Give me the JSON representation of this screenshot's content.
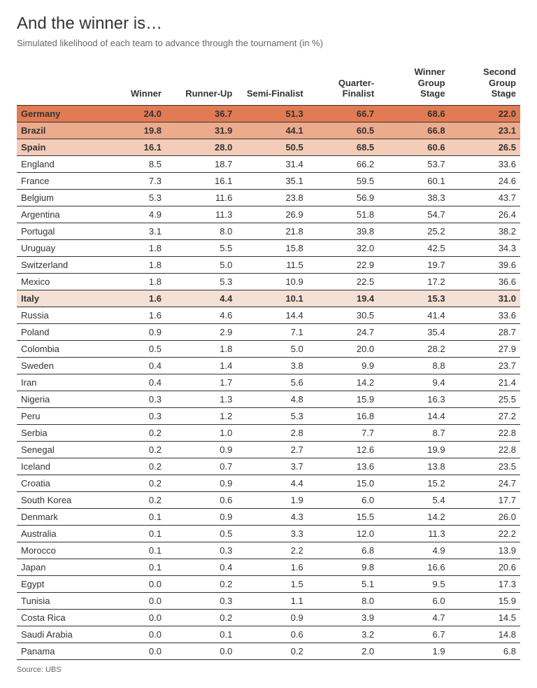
{
  "title": "And the winner is…",
  "subtitle": "Simulated likelihood of each team to advance through the tournament (in %)",
  "source": "Source: UBS",
  "columns": [
    "",
    "Winner",
    "Runner-Up",
    "Semi-Finalist",
    "Quarter-Finalist",
    "Winner Group Stage",
    "Second Group Stage"
  ],
  "highlight_colors": [
    "#e17b54",
    "#edab8d",
    "#f4cdb9",
    "#f4e0d4"
  ],
  "row_border_color": "#333333",
  "background_color": "#ffffff",
  "title_fontsize": 24,
  "subtitle_fontsize": 13,
  "body_fontsize": 13,
  "rows": [
    {
      "team": "Germany",
      "cells": [
        "24.0",
        "36.7",
        "51.3",
        "66.7",
        "68.6",
        "22.0"
      ],
      "highlight": 0
    },
    {
      "team": "Brazil",
      "cells": [
        "19.8",
        "31.9",
        "44.1",
        "60.5",
        "66.8",
        "23.1"
      ],
      "highlight": 1
    },
    {
      "team": "Spain",
      "cells": [
        "16.1",
        "28.0",
        "50.5",
        "68.5",
        "60.6",
        "26.5"
      ],
      "highlight": 2
    },
    {
      "team": "England",
      "cells": [
        "8.5",
        "18.7",
        "31.4",
        "66.2",
        "53.7",
        "33.6"
      ]
    },
    {
      "team": "France",
      "cells": [
        "7.3",
        "16.1",
        "35.1",
        "59.5",
        "60.1",
        "24.6"
      ]
    },
    {
      "team": "Belgium",
      "cells": [
        "5.3",
        "11.6",
        "23.8",
        "56.9",
        "38.3",
        "43.7"
      ]
    },
    {
      "team": "Argentina",
      "cells": [
        "4.9",
        "11.3",
        "26.9",
        "51.8",
        "54.7",
        "26.4"
      ]
    },
    {
      "team": "Portugal",
      "cells": [
        "3.1",
        "8.0",
        "21.8",
        "39.8",
        "25.2",
        "38.2"
      ]
    },
    {
      "team": "Uruguay",
      "cells": [
        "1.8",
        "5.5",
        "15.8",
        "32.0",
        "42.5",
        "34.3"
      ]
    },
    {
      "team": "Switzerland",
      "cells": [
        "1.8",
        "5.0",
        "11.5",
        "22.9",
        "19.7",
        "39.6"
      ]
    },
    {
      "team": "Mexico",
      "cells": [
        "1.8",
        "5.3",
        "10.9",
        "22.5",
        "17.2",
        "36.6"
      ]
    },
    {
      "team": "Italy",
      "cells": [
        "1.6",
        "4.4",
        "10.1",
        "19.4",
        "15.3",
        "31.0"
      ],
      "highlight": 3
    },
    {
      "team": "Russia",
      "cells": [
        "1.6",
        "4.6",
        "14.4",
        "30.5",
        "41.4",
        "33.6"
      ]
    },
    {
      "team": "Poland",
      "cells": [
        "0.9",
        "2.9",
        "7.1",
        "24.7",
        "35.4",
        "28.7"
      ]
    },
    {
      "team": "Colombia",
      "cells": [
        "0.5",
        "1.8",
        "5.0",
        "20.0",
        "28.2",
        "27.9"
      ]
    },
    {
      "team": "Sweden",
      "cells": [
        "0.4",
        "1.4",
        "3.8",
        "9.9",
        "8.8",
        "23.7"
      ]
    },
    {
      "team": "Iran",
      "cells": [
        "0.4",
        "1.7",
        "5.6",
        "14.2",
        "9.4",
        "21.4"
      ]
    },
    {
      "team": "Nigeria",
      "cells": [
        "0.3",
        "1.3",
        "4.8",
        "15.9",
        "16.3",
        "25.5"
      ]
    },
    {
      "team": "Peru",
      "cells": [
        "0.3",
        "1.2",
        "5.3",
        "16.8",
        "14.4",
        "27.2"
      ]
    },
    {
      "team": "Serbia",
      "cells": [
        "0.2",
        "1.0",
        "2.8",
        "7.7",
        "8.7",
        "22.8"
      ]
    },
    {
      "team": "Senegal",
      "cells": [
        "0.2",
        "0.9",
        "2.7",
        "12.6",
        "19.9",
        "22.8"
      ]
    },
    {
      "team": "Iceland",
      "cells": [
        "0.2",
        "0.7",
        "3.7",
        "13.6",
        "13.8",
        "23.5"
      ]
    },
    {
      "team": "Croatia",
      "cells": [
        "0.2",
        "0.9",
        "4.4",
        "15.0",
        "15.2",
        "24.7"
      ]
    },
    {
      "team": "South Korea",
      "cells": [
        "0.2",
        "0.6",
        "1.9",
        "6.0",
        "5.4",
        "17.7"
      ]
    },
    {
      "team": "Denmark",
      "cells": [
        "0.1",
        "0.9",
        "4.3",
        "15.5",
        "14.2",
        "26.0"
      ]
    },
    {
      "team": "Australia",
      "cells": [
        "0.1",
        "0.5",
        "3.3",
        "12.0",
        "11.3",
        "22.2"
      ]
    },
    {
      "team": "Morocco",
      "cells": [
        "0.1",
        "0.3",
        "2.2",
        "6.8",
        "4.9",
        "13.9"
      ]
    },
    {
      "team": "Japan",
      "cells": [
        "0.1",
        "0.4",
        "1.6",
        "9.8",
        "16.6",
        "20.6"
      ]
    },
    {
      "team": "Egypt",
      "cells": [
        "0.0",
        "0.2",
        "1.5",
        "5.1",
        "9.5",
        "17.3"
      ]
    },
    {
      "team": "Tunisia",
      "cells": [
        "0.0",
        "0.3",
        "1.1",
        "8.0",
        "6.0",
        "15.9"
      ]
    },
    {
      "team": "Costa Rica",
      "cells": [
        "0.0",
        "0.2",
        "0.9",
        "3.9",
        "4.7",
        "14.5"
      ]
    },
    {
      "team": "Saudi Arabia",
      "cells": [
        "0.0",
        "0.1",
        "0.6",
        "3.2",
        "6.7",
        "14.8"
      ]
    },
    {
      "team": "Panama",
      "cells": [
        "0.0",
        "0.0",
        "0.2",
        "2.0",
        "1.9",
        "6.8"
      ]
    }
  ]
}
